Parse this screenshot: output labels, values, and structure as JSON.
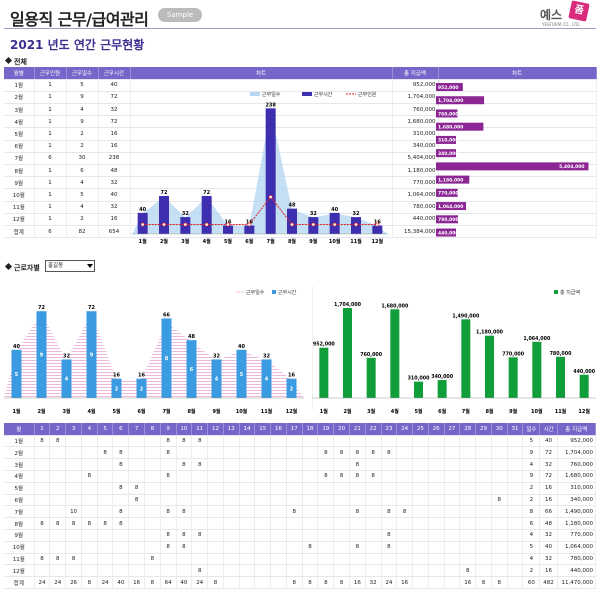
{
  "header": {
    "title": "일용직 근무/급여관리",
    "sample_badge": "Sample",
    "logo_text": "예스",
    "logo_mark": "폼",
    "logo_sub": "YESFORM CO., LTD."
  },
  "subtitle": "2021 년도 연간 근무현황",
  "overall": {
    "section_label": "전체",
    "columns": [
      "월별",
      "근무인원",
      "근무일수",
      "근무시간",
      "차트",
      "총 지급액",
      "차트"
    ],
    "rows": [
      {
        "month": "1월",
        "staff": "1",
        "days": "5",
        "hours": "40",
        "pay": "952,000"
      },
      {
        "month": "2월",
        "staff": "1",
        "days": "9",
        "hours": "72",
        "pay": "1,704,000"
      },
      {
        "month": "3월",
        "staff": "1",
        "days": "4",
        "hours": "32",
        "pay": "760,000"
      },
      {
        "month": "4월",
        "staff": "1",
        "days": "9",
        "hours": "72",
        "pay": "1,680,000"
      },
      {
        "month": "5월",
        "staff": "1",
        "days": "2",
        "hours": "16",
        "pay": "310,000"
      },
      {
        "month": "6월",
        "staff": "1",
        "days": "2",
        "hours": "16",
        "pay": "340,000"
      },
      {
        "month": "7월",
        "staff": "6",
        "days": "30",
        "hours": "238",
        "pay": "5,404,000"
      },
      {
        "month": "8월",
        "staff": "1",
        "days": "6",
        "hours": "48",
        "pay": "1,180,000"
      },
      {
        "month": "9월",
        "staff": "1",
        "days": "4",
        "hours": "32",
        "pay": "770,000"
      },
      {
        "month": "10월",
        "staff": "1",
        "days": "5",
        "hours": "40",
        "pay": "1,064,000"
      },
      {
        "month": "11월",
        "staff": "1",
        "days": "4",
        "hours": "32",
        "pay": "780,000"
      },
      {
        "month": "12월",
        "staff": "1",
        "days": "2",
        "hours": "16",
        "pay": "440,000"
      }
    ],
    "total": {
      "label": "합계",
      "staff": "6",
      "days": "82",
      "hours": "654",
      "pay": "15,384,000"
    }
  },
  "worker": {
    "section_label": "근로자별",
    "selected": "홍길동"
  },
  "daily": {
    "header": [
      "월",
      "1",
      "2",
      "3",
      "4",
      "5",
      "6",
      "7",
      "8",
      "9",
      "10",
      "11",
      "12",
      "13",
      "14",
      "15",
      "16",
      "17",
      "18",
      "19",
      "20",
      "21",
      "22",
      "23",
      "24",
      "25",
      "26",
      "27",
      "28",
      "29",
      "30",
      "31",
      "일수",
      "시간",
      "총 지급액"
    ],
    "rows": [
      [
        "1월",
        "8",
        "8",
        "",
        "",
        "",
        "",
        "",
        "",
        "8",
        "8",
        "8",
        "",
        "",
        "",
        "",
        "",
        "",
        "",
        "",
        "",
        "",
        "",
        "",
        "",
        "",
        "",
        "",
        "",
        "",
        "",
        "",
        "5",
        "40",
        "952,000"
      ],
      [
        "2월",
        "",
        "",
        "",
        "",
        "8",
        "8",
        "",
        "",
        "8",
        "",
        "",
        "",
        "",
        "",
        "",
        "",
        "",
        "",
        "8",
        "8",
        "8",
        "8",
        "8",
        "",
        "",
        "",
        "",
        "",
        "",
        "",
        "",
        "9",
        "72",
        "1,704,000"
      ],
      [
        "3월",
        "",
        "",
        "",
        "",
        "",
        "8",
        "",
        "",
        "",
        "8",
        "8",
        "",
        "",
        "",
        "",
        "",
        "",
        "",
        "",
        "",
        "8",
        "",
        "",
        "",
        "",
        "",
        "",
        "",
        "",
        "",
        "",
        "4",
        "32",
        "760,000"
      ],
      [
        "4월",
        "",
        "",
        "",
        "8",
        "",
        "",
        "",
        "",
        "8",
        "",
        "",
        "",
        "",
        "",
        "",
        "",
        "",
        "",
        "8",
        "8",
        "8",
        "8",
        "",
        "",
        "",
        "",
        "",
        "",
        "",
        "",
        "",
        "9",
        "72",
        "1,680,000"
      ],
      [
        "5월",
        "",
        "",
        "",
        "",
        "",
        "8",
        "8",
        "",
        "",
        "",
        "",
        "",
        "",
        "",
        "",
        "",
        "",
        "",
        "",
        "",
        "",
        "",
        "",
        "",
        "",
        "",
        "",
        "",
        "",
        "",
        "",
        "2",
        "16",
        "310,000"
      ],
      [
        "6월",
        "",
        "",
        "",
        "",
        "",
        "",
        "8",
        "",
        "",
        "",
        "",
        "",
        "",
        "",
        "",
        "",
        "",
        "",
        "",
        "",
        "",
        "",
        "",
        "",
        "",
        "",
        "",
        "",
        "",
        "8",
        "",
        "2",
        "16",
        "340,000"
      ],
      [
        "7월",
        "",
        "",
        "10",
        "",
        "",
        "8",
        "",
        "",
        "8",
        "8",
        "",
        "",
        "",
        "",
        "",
        "",
        "8",
        "",
        "",
        "",
        "8",
        "",
        "8",
        "8",
        "",
        "",
        "",
        "",
        "",
        "",
        "",
        "8",
        "66",
        "1,490,000"
      ],
      [
        "8월",
        "8",
        "8",
        "8",
        "8",
        "8",
        "8",
        "",
        "",
        "",
        "",
        "",
        "",
        "",
        "",
        "",
        "",
        "",
        "",
        "",
        "",
        "",
        "",
        "",
        "",
        "",
        "",
        "",
        "",
        "",
        "",
        "",
        "6",
        "48",
        "1,180,000"
      ],
      [
        "9월",
        "",
        "",
        "",
        "",
        "",
        "",
        "",
        "",
        "8",
        "8",
        "8",
        "",
        "",
        "",
        "",
        "",
        "",
        "",
        "",
        "",
        "",
        "",
        "8",
        "",
        "",
        "",
        "",
        "",
        "",
        "",
        "",
        "4",
        "32",
        "770,000"
      ],
      [
        "10월",
        "",
        "",
        "",
        "",
        "",
        "",
        "",
        "",
        "8",
        "8",
        "",
        "",
        "",
        "",
        "",
        "",
        "",
        "8",
        "",
        "",
        "8",
        "",
        "8",
        "",
        "",
        "",
        "",
        "",
        "",
        "",
        "",
        "5",
        "40",
        "1,064,000"
      ],
      [
        "11월",
        "8",
        "8",
        "8",
        "",
        "",
        "",
        "",
        "8",
        "",
        "",
        "",
        "",
        "",
        "",
        "",
        "",
        "",
        "",
        "",
        "",
        "",
        "",
        "",
        "",
        "",
        "",
        "",
        "",
        "",
        "",
        "",
        "4",
        "32",
        "780,000"
      ],
      [
        "12월",
        "",
        "",
        "",
        "",
        "",
        "",
        "",
        "",
        "",
        "",
        "8",
        "",
        "",
        "",
        "",
        "",
        "",
        "",
        "",
        "",
        "",
        "",
        "",
        "",
        "",
        "",
        "",
        "8",
        "",
        "",
        "",
        "2",
        "16",
        "440,000"
      ]
    ],
    "total": [
      "합계",
      "24",
      "24",
      "26",
      "8",
      "24",
      "40",
      "16",
      "8",
      "64",
      "40",
      "24",
      "8",
      "",
      "",
      "",
      "",
      "8",
      "8",
      "8",
      "8",
      "16",
      "32",
      "24",
      "16",
      "",
      "",
      "",
      "16",
      "8",
      "8",
      "",
      "60",
      "482",
      "11,470,000"
    ]
  },
  "chart_data": [
    {
      "type": "bar",
      "legend": [
        "근무일수",
        "근무시간",
        "근무인원"
      ],
      "legend_placement": "top-right",
      "categories": [
        "1월",
        "2월",
        "3월",
        "4월",
        "5월",
        "6월",
        "7월",
        "8월",
        "9월",
        "10월",
        "11월",
        "12월"
      ],
      "series": [
        {
          "name": "근무일수",
          "type": "area",
          "values": [
            5,
            9,
            4,
            9,
            2,
            2,
            30,
            6,
            4,
            5,
            4,
            2
          ]
        },
        {
          "name": "근무시간",
          "type": "bar",
          "values": [
            40,
            72,
            32,
            72,
            16,
            16,
            238,
            48,
            32,
            40,
            32,
            16
          ]
        },
        {
          "name": "근무인원",
          "type": "line",
          "values": [
            1,
            1,
            1,
            1,
            1,
            1,
            6,
            1,
            1,
            1,
            1,
            1
          ]
        }
      ]
    },
    {
      "type": "bar",
      "orientation": "horizontal",
      "categories": [
        "1월",
        "2월",
        "3월",
        "4월",
        "5월",
        "6월",
        "7월",
        "8월",
        "9월",
        "10월",
        "11월",
        "12월"
      ],
      "values": [
        952000,
        1704000,
        760000,
        1680000,
        310000,
        340000,
        5404000,
        1180000,
        770000,
        1064000,
        780000,
        440000
      ],
      "labels": [
        "952,000",
        "1,704,000",
        "760,000",
        "1,680,000",
        "310,000",
        "340,000",
        "5,404,000",
        "1,180,000",
        "770,000",
        "1,064,000",
        "780,000",
        "440,000"
      ]
    },
    {
      "type": "bar",
      "legend": [
        "근무일수",
        "근무시간"
      ],
      "legend_placement": "top-right",
      "categories": [
        "1월",
        "2월",
        "3월",
        "4월",
        "5월",
        "6월",
        "7월",
        "8월",
        "9월",
        "10월",
        "11월",
        "12월"
      ],
      "series": [
        {
          "name": "근무일수",
          "type": "area",
          "values": [
            5,
            9,
            4,
            9,
            2,
            2,
            8,
            6,
            4,
            5,
            4,
            2
          ]
        },
        {
          "name": "근무시간",
          "type": "bar",
          "values": [
            40,
            72,
            32,
            72,
            16,
            16,
            66,
            48,
            32,
            40,
            32,
            16
          ]
        }
      ]
    },
    {
      "type": "bar",
      "legend": [
        "총 지급액"
      ],
      "legend_placement": "top-right",
      "categories": [
        "1월",
        "2월",
        "3월",
        "4월",
        "5월",
        "6월",
        "7월",
        "8월",
        "9월",
        "10월",
        "11월",
        "12월"
      ],
      "values": [
        952000,
        1704000,
        760000,
        1680000,
        310000,
        340000,
        1490000,
        1180000,
        770000,
        1064000,
        780000,
        440000
      ],
      "labels": [
        "952,000",
        "1,704,000",
        "760,000",
        "1,680,000",
        "310,000",
        "340,000",
        "1,490,000",
        "1,180,000",
        "770,000",
        "1,064,000",
        "780,000",
        "440,000"
      ],
      "color": "#0f9e3a"
    }
  ],
  "colors": {
    "header_bg": "#7467c9",
    "bar_purple": "#3d2fb0",
    "hbar": "#8b2694",
    "bar_blue": "#3a9be0",
    "bar_green": "#0f9e3a",
    "area_blue": "#b7d7f2",
    "area_pink": "#f0a6d8",
    "line_red": "#e02020"
  }
}
